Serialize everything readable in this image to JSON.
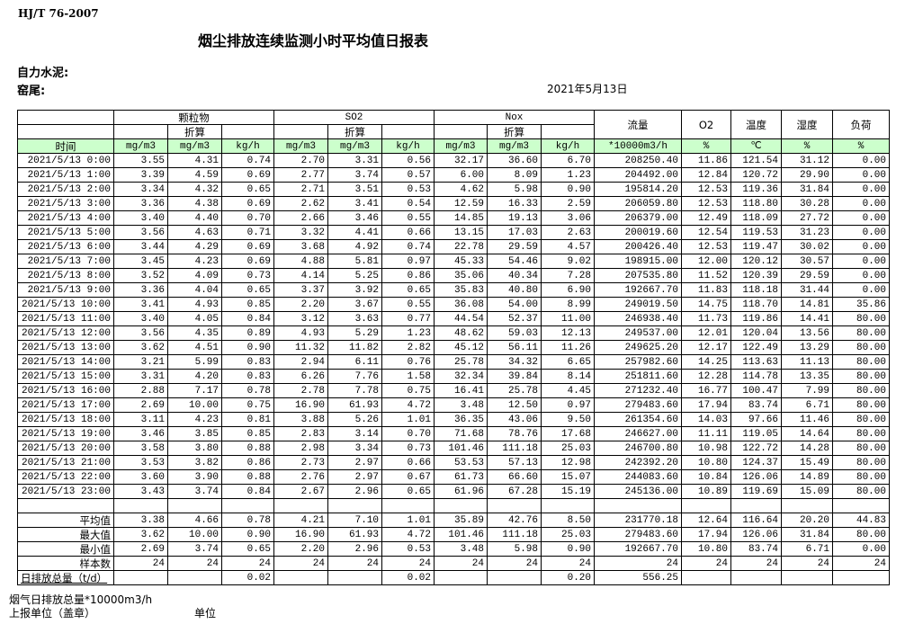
{
  "header": {
    "standard": "HJ/T  76-2007",
    "title": "烟尘排放连续监测小时平均值日报表",
    "company": "自力水泥:",
    "kiln": "窑尾:",
    "date": "2021年5月13日"
  },
  "table": {
    "groups": [
      "颗粒物",
      "SO2",
      "Nox",
      "流量",
      "O2",
      "温度",
      "湿度",
      "负荷"
    ],
    "converted_label": "折算",
    "units": [
      "时间",
      "mg/m3",
      "mg/m3",
      "kg/h",
      "mg/m3",
      "mg/m3",
      "kg/h",
      "mg/m3",
      "mg/m3",
      "kg/h",
      "*10000m3/h",
      "%",
      "℃",
      "%",
      "%"
    ],
    "unit_row_color": "#ccffcc",
    "rows": [
      [
        "2021/5/13 0:00",
        "3.55",
        "4.31",
        "0.74",
        "2.70",
        "3.31",
        "0.56",
        "32.17",
        "36.60",
        "6.70",
        "208250.40",
        "11.86",
        "121.54",
        "31.12",
        "0.00"
      ],
      [
        "2021/5/13 1:00",
        "3.39",
        "4.59",
        "0.69",
        "2.77",
        "3.74",
        "0.57",
        "6.00",
        "8.09",
        "1.23",
        "204492.00",
        "12.84",
        "120.72",
        "29.90",
        "0.00"
      ],
      [
        "2021/5/13 2:00",
        "3.34",
        "4.32",
        "0.65",
        "2.71",
        "3.51",
        "0.53",
        "4.62",
        "5.98",
        "0.90",
        "195814.20",
        "12.53",
        "119.36",
        "31.84",
        "0.00"
      ],
      [
        "2021/5/13 3:00",
        "3.36",
        "4.38",
        "0.69",
        "2.62",
        "3.41",
        "0.54",
        "12.59",
        "16.33",
        "2.59",
        "206059.80",
        "12.53",
        "118.80",
        "30.28",
        "0.00"
      ],
      [
        "2021/5/13 4:00",
        "3.40",
        "4.40",
        "0.70",
        "2.66",
        "3.46",
        "0.55",
        "14.85",
        "19.13",
        "3.06",
        "206379.00",
        "12.49",
        "118.09",
        "27.72",
        "0.00"
      ],
      [
        "2021/5/13 5:00",
        "3.56",
        "4.63",
        "0.71",
        "3.32",
        "4.41",
        "0.66",
        "13.15",
        "17.03",
        "2.63",
        "200019.60",
        "12.54",
        "119.53",
        "31.23",
        "0.00"
      ],
      [
        "2021/5/13 6:00",
        "3.44",
        "4.29",
        "0.69",
        "3.68",
        "4.92",
        "0.74",
        "22.78",
        "29.59",
        "4.57",
        "200426.40",
        "12.53",
        "119.47",
        "30.02",
        "0.00"
      ],
      [
        "2021/5/13 7:00",
        "3.45",
        "4.23",
        "0.69",
        "4.88",
        "5.81",
        "0.97",
        "45.33",
        "54.46",
        "9.02",
        "198915.00",
        "12.00",
        "120.12",
        "30.57",
        "0.00"
      ],
      [
        "2021/5/13 8:00",
        "3.52",
        "4.09",
        "0.73",
        "4.14",
        "5.25",
        "0.86",
        "35.06",
        "40.34",
        "7.28",
        "207535.80",
        "11.52",
        "120.39",
        "29.59",
        "0.00"
      ],
      [
        "2021/5/13 9:00",
        "3.36",
        "4.04",
        "0.65",
        "3.37",
        "3.92",
        "0.65",
        "35.83",
        "40.80",
        "6.90",
        "192667.70",
        "11.83",
        "118.18",
        "31.44",
        "0.00"
      ],
      [
        "2021/5/13 10:00",
        "3.41",
        "4.93",
        "0.85",
        "2.20",
        "3.67",
        "0.55",
        "36.08",
        "54.00",
        "8.99",
        "249019.50",
        "14.75",
        "118.70",
        "14.81",
        "35.86"
      ],
      [
        "2021/5/13 11:00",
        "3.40",
        "4.05",
        "0.84",
        "3.12",
        "3.63",
        "0.77",
        "44.54",
        "52.37",
        "11.00",
        "246938.40",
        "11.73",
        "119.86",
        "14.41",
        "80.00"
      ],
      [
        "2021/5/13 12:00",
        "3.56",
        "4.35",
        "0.89",
        "4.93",
        "5.29",
        "1.23",
        "48.62",
        "59.03",
        "12.13",
        "249537.00",
        "12.01",
        "120.04",
        "13.56",
        "80.00"
      ],
      [
        "2021/5/13 13:00",
        "3.62",
        "4.51",
        "0.90",
        "11.32",
        "11.82",
        "2.82",
        "45.12",
        "56.11",
        "11.26",
        "249625.20",
        "12.17",
        "122.49",
        "13.29",
        "80.00"
      ],
      [
        "2021/5/13 14:00",
        "3.21",
        "5.99",
        "0.83",
        "2.94",
        "6.11",
        "0.76",
        "25.78",
        "34.32",
        "6.65",
        "257982.60",
        "14.25",
        "113.63",
        "11.13",
        "80.00"
      ],
      [
        "2021/5/13 15:00",
        "3.31",
        "4.20",
        "0.83",
        "6.26",
        "7.76",
        "1.58",
        "32.34",
        "39.84",
        "8.14",
        "251811.60",
        "12.28",
        "114.78",
        "13.35",
        "80.00"
      ],
      [
        "2021/5/13 16:00",
        "2.88",
        "7.17",
        "0.78",
        "2.78",
        "7.78",
        "0.75",
        "16.41",
        "25.78",
        "4.45",
        "271232.40",
        "16.77",
        "100.47",
        "7.99",
        "80.00"
      ],
      [
        "2021/5/13 17:00",
        "2.69",
        "10.00",
        "0.75",
        "16.90",
        "61.93",
        "4.72",
        "3.48",
        "12.50",
        "0.97",
        "279483.60",
        "17.94",
        "83.74",
        "6.71",
        "80.00"
      ],
      [
        "2021/5/13 18:00",
        "3.11",
        "4.23",
        "0.81",
        "3.88",
        "5.26",
        "1.01",
        "36.35",
        "43.06",
        "9.50",
        "261354.60",
        "14.03",
        "97.66",
        "11.46",
        "80.00"
      ],
      [
        "2021/5/13 19:00",
        "3.46",
        "3.85",
        "0.85",
        "2.83",
        "3.14",
        "0.70",
        "71.68",
        "78.76",
        "17.68",
        "246627.00",
        "11.11",
        "119.05",
        "14.64",
        "80.00"
      ],
      [
        "2021/5/13 20:00",
        "3.58",
        "3.80",
        "0.88",
        "2.98",
        "3.34",
        "0.73",
        "101.46",
        "111.18",
        "25.03",
        "246700.80",
        "10.98",
        "122.72",
        "14.28",
        "80.00"
      ],
      [
        "2021/5/13 21:00",
        "3.53",
        "3.82",
        "0.86",
        "2.73",
        "2.97",
        "0.66",
        "53.53",
        "57.13",
        "12.98",
        "242392.20",
        "10.80",
        "124.37",
        "15.49",
        "80.00"
      ],
      [
        "2021/5/13 22:00",
        "3.60",
        "3.90",
        "0.88",
        "2.76",
        "2.97",
        "0.67",
        "61.73",
        "66.60",
        "15.07",
        "244083.60",
        "10.84",
        "126.06",
        "14.89",
        "80.00"
      ],
      [
        "2021/5/13 23:00",
        "3.43",
        "3.74",
        "0.84",
        "2.67",
        "2.96",
        "0.65",
        "61.96",
        "67.28",
        "15.19",
        "245136.00",
        "10.89",
        "119.69",
        "15.09",
        "80.00"
      ]
    ],
    "summary": [
      [
        "平均值",
        "3.38",
        "4.66",
        "0.78",
        "4.21",
        "7.10",
        "1.01",
        "35.89",
        "42.76",
        "8.50",
        "231770.18",
        "12.64",
        "116.64",
        "20.20",
        "44.83"
      ],
      [
        "最大值",
        "3.62",
        "10.00",
        "0.90",
        "16.90",
        "61.93",
        "4.72",
        "101.46",
        "111.18",
        "25.03",
        "279483.60",
        "17.94",
        "126.06",
        "31.84",
        "80.00"
      ],
      [
        "最小值",
        "2.69",
        "3.74",
        "0.65",
        "2.20",
        "2.96",
        "0.53",
        "3.48",
        "5.98",
        "0.90",
        "192667.70",
        "10.80",
        "83.74",
        "6.71",
        "0.00"
      ],
      [
        "样本数",
        "24",
        "24",
        "24",
        "24",
        "24",
        "24",
        "24",
        "24",
        "24",
        "24",
        "24",
        "24",
        "24",
        "24"
      ],
      [
        "日排放总量（t/d）",
        "",
        "",
        "0.02",
        "",
        "",
        "0.02",
        "",
        "",
        "0.20",
        "556.25",
        "",
        "",
        "",
        ""
      ]
    ]
  },
  "footer": {
    "flue_gas_total": "烟气日排放总量*10000m3/h",
    "reporter": "上报单位（盖章）",
    "unit": "单位"
  }
}
